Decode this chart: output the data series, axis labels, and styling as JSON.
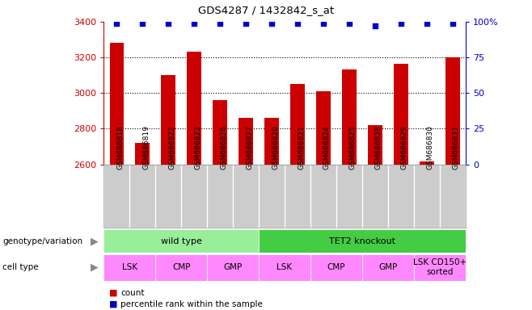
{
  "title": "GDS4287 / 1432842_s_at",
  "samples": [
    "GSM686818",
    "GSM686819",
    "GSM686822",
    "GSM686823",
    "GSM686826",
    "GSM686827",
    "GSM686820",
    "GSM686821",
    "GSM686824",
    "GSM686825",
    "GSM686828",
    "GSM686829",
    "GSM686830",
    "GSM686831"
  ],
  "counts": [
    3280,
    2720,
    3100,
    3230,
    2960,
    2860,
    2860,
    3050,
    3010,
    3130,
    2820,
    3165,
    2615,
    3200
  ],
  "percentile_ranks": [
    99,
    99,
    99,
    99,
    99,
    99,
    99,
    99,
    99,
    99,
    97,
    99,
    99,
    99
  ],
  "ylim_left": [
    2600,
    3400
  ],
  "ylim_right": [
    0,
    100
  ],
  "yticks_left": [
    2600,
    2800,
    3000,
    3200,
    3400
  ],
  "yticks_right": [
    0,
    25,
    50,
    75,
    100
  ],
  "bar_color": "#CC0000",
  "dot_color": "#0000CC",
  "bar_width": 0.55,
  "genotype_groups": [
    {
      "label": "wild type",
      "start": 0,
      "end": 6,
      "color": "#99EE99"
    },
    {
      "label": "TET2 knockout",
      "start": 6,
      "end": 14,
      "color": "#44CC44"
    }
  ],
  "cell_type_groups": [
    {
      "label": "LSK",
      "start": 0,
      "end": 2
    },
    {
      "label": "CMP",
      "start": 2,
      "end": 4
    },
    {
      "label": "GMP",
      "start": 4,
      "end": 6
    },
    {
      "label": "LSK",
      "start": 6,
      "end": 8
    },
    {
      "label": "CMP",
      "start": 8,
      "end": 10
    },
    {
      "label": "GMP",
      "start": 10,
      "end": 12
    },
    {
      "label": "LSK CD150+\nsorted",
      "start": 12,
      "end": 14
    }
  ],
  "cell_type_color": "#FF88FF",
  "sample_bg_color": "#CCCCCC",
  "genotype_label": "genotype/variation",
  "cell_type_label": "cell type",
  "legend_count_color": "#CC0000",
  "legend_dot_color": "#0000CC",
  "bg_color": "#ffffff",
  "tick_color_left": "#CC0000",
  "tick_color_right": "#0000CC",
  "grid_lines": [
    3200,
    3000,
    2800
  ],
  "right_tick_labels": [
    "0",
    "25",
    "50",
    "75",
    "100%"
  ]
}
